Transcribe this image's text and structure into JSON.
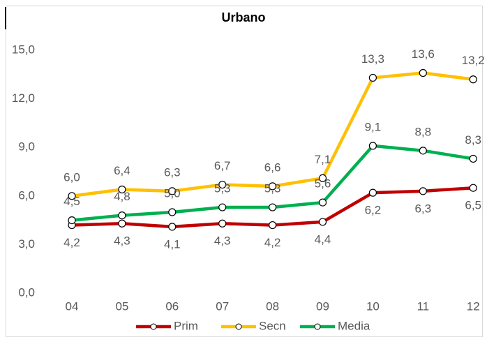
{
  "chart_data": {
    "type": "line",
    "title": "Urbano",
    "categories": [
      "04",
      "05",
      "06",
      "07",
      "08",
      "09",
      "10",
      "11",
      "12"
    ],
    "series": [
      {
        "name": "Prim",
        "color": "#c00000",
        "values": [
          4.2,
          4.3,
          4.1,
          4.3,
          4.2,
          4.4,
          6.2,
          6.3,
          6.5
        ],
        "value_labels": [
          "4,2",
          "4,3",
          "4,1",
          "4,3",
          "4,2",
          "4,4",
          "6,2",
          "6,3",
          "6,5"
        ]
      },
      {
        "name": "Secn",
        "color": "#ffc000",
        "values": [
          6.0,
          6.4,
          6.3,
          6.7,
          6.6,
          7.1,
          13.3,
          13.6,
          13.2
        ],
        "value_labels": [
          "6,0",
          "6,4",
          "6,3",
          "6,7",
          "6,6",
          "7,1",
          "13,3",
          "13,6",
          "13,2"
        ]
      },
      {
        "name": "Media",
        "color": "#00b050",
        "values": [
          4.5,
          4.8,
          5.0,
          5.3,
          5.3,
          5.6,
          9.1,
          8.8,
          8.3
        ],
        "value_labels": [
          "4,5",
          "4,8",
          "5,0",
          "5,3",
          "5,3",
          "5,6",
          "9,1",
          "8,8",
          "8,3"
        ]
      }
    ],
    "ylim": [
      0,
      15
    ],
    "yticks": [
      {
        "value": 0,
        "label": "0,0"
      },
      {
        "value": 3,
        "label": "3,0"
      },
      {
        "value": 6,
        "label": "6,0"
      },
      {
        "value": 9,
        "label": "9,0"
      },
      {
        "value": 12,
        "label": "12,0"
      },
      {
        "value": 15,
        "label": "15,0"
      }
    ],
    "grid": false,
    "legend": "bottom"
  }
}
